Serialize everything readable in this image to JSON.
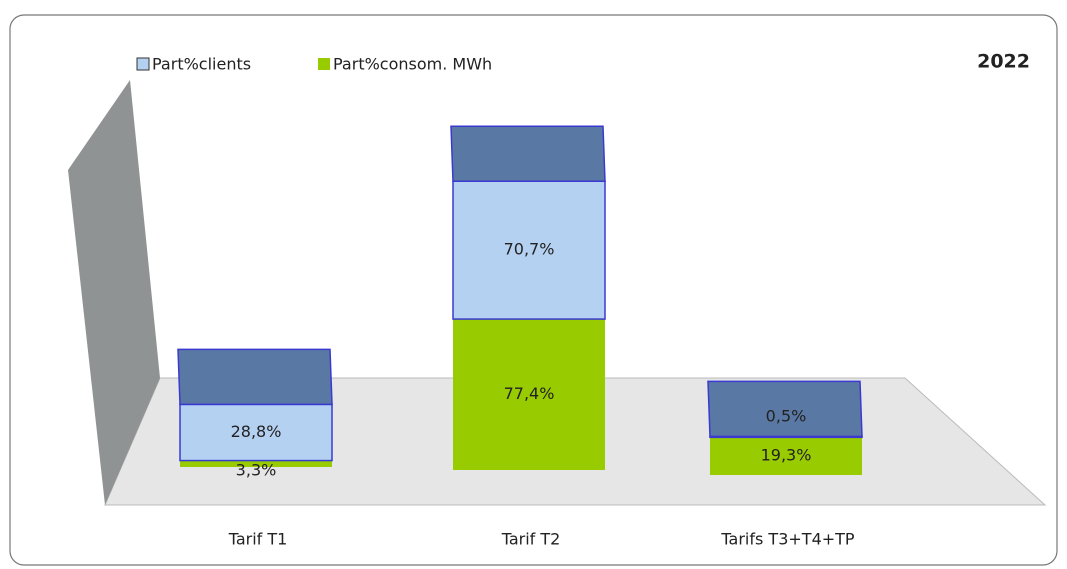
{
  "chart_data": {
    "type": "bar",
    "stacked": true,
    "title": "2022",
    "categories": [
      "Tarif T1",
      "Tarif T2",
      "Tarifs T3+T4+TP"
    ],
    "series": [
      {
        "name": "Part%consom. MWh",
        "color": "#99cc00",
        "values": [
          3.3,
          77.4,
          19.3
        ],
        "value_labels": [
          "3,3%",
          "77,4%",
          "19,3%"
        ]
      },
      {
        "name": "Part%clients",
        "color": "#b5d1f2",
        "values": [
          28.8,
          70.7,
          0.5
        ],
        "value_labels": [
          "28,8%",
          "70,7%",
          "0,5%"
        ]
      }
    ],
    "legend_order": [
      1,
      0
    ]
  }
}
